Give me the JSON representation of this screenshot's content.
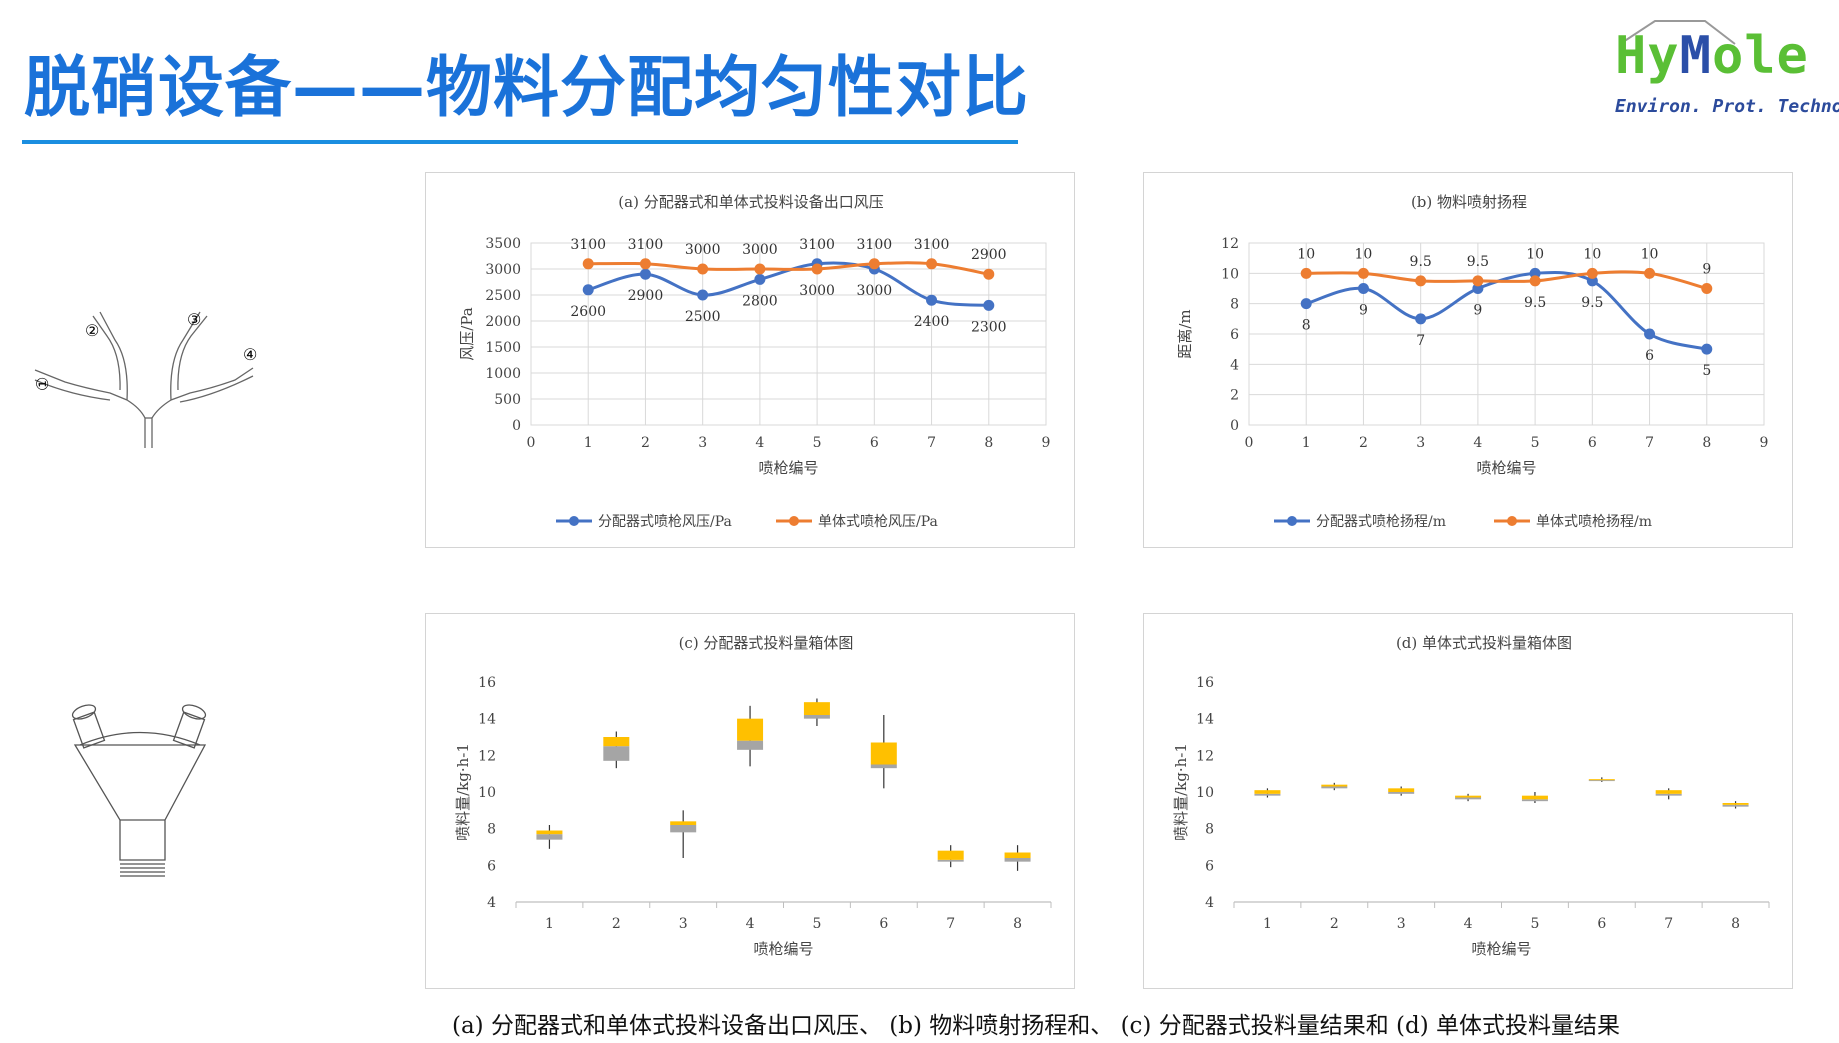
{
  "page_title": "脱硝设备——物料分配均匀性对比",
  "logo": {
    "brand_a": "Hy",
    "brand_b": "M",
    "brand_c": "ole",
    "tagline": "Environ. Prot. Technol."
  },
  "diagram_branch": {
    "labels": [
      "①",
      "②",
      "③",
      "④"
    ]
  },
  "caption": "(a) 分配器式和单体式投料设备出口风压、 (b) 物料喷射扬程和、 (c) 分配器式投料量结果和 (d) 单体式投料量结果",
  "colors": {
    "blue": "#4472c4",
    "orange": "#ed7d31",
    "box_yellow": "#ffc000",
    "box_gray": "#a5a5a5",
    "title": "#1a72d9"
  },
  "chart_data": [
    {
      "type": "line",
      "title": "(a) 分配器式和单体式投料设备出口风压",
      "xlabel": "喷枪编号",
      "ylabel": "风压/Pa",
      "xlim": [
        0,
        9
      ],
      "ylim": [
        0,
        3500
      ],
      "xticks": [
        "0",
        "1",
        "2",
        "3",
        "4",
        "5",
        "6",
        "7",
        "8",
        "9"
      ],
      "yticks": [
        "0",
        "500",
        "1000",
        "1500",
        "2000",
        "2500",
        "3000",
        "3500"
      ],
      "grid": true,
      "legend": "bottom",
      "series": [
        {
          "name": "分配器式喷枪风压/Pa",
          "color": "#4472c4",
          "x": [
            1,
            2,
            3,
            4,
            5,
            6,
            7,
            8
          ],
          "values": [
            2600,
            2900,
            2500,
            2800,
            3100,
            3000,
            2400,
            2300
          ],
          "labels": [
            "2600",
            "2900",
            "2500",
            "2800",
            "3100",
            "3000",
            "2400",
            "2300"
          ]
        },
        {
          "name": "单体式喷枪风压/Pa",
          "color": "#ed7d31",
          "x": [
            1,
            2,
            3,
            4,
            5,
            6,
            7,
            8
          ],
          "values": [
            3100,
            3100,
            3000,
            3000,
            3000,
            3100,
            3100,
            2900
          ],
          "labels": [
            "3100",
            "3100",
            "3000",
            "3000",
            "3000",
            "3100",
            "3100",
            "2900"
          ]
        }
      ]
    },
    {
      "type": "line",
      "title": "(b) 物料喷射扬程",
      "xlabel": "喷枪编号",
      "ylabel": "距离/m",
      "xlim": [
        0,
        9
      ],
      "ylim": [
        0,
        12
      ],
      "xticks": [
        "0",
        "1",
        "2",
        "3",
        "4",
        "5",
        "6",
        "7",
        "8",
        "9"
      ],
      "yticks": [
        "0",
        "2",
        "4",
        "6",
        "8",
        "10",
        "12"
      ],
      "grid": true,
      "legend": "bottom",
      "series": [
        {
          "name": "分配器式喷枪扬程/m",
          "color": "#4472c4",
          "x": [
            1,
            2,
            3,
            4,
            5,
            6,
            7,
            8
          ],
          "values": [
            8,
            9,
            7,
            9,
            10,
            9.5,
            6,
            5
          ],
          "labels": [
            "8",
            "9",
            "7",
            "9",
            "10",
            "9.5",
            "6",
            "5"
          ]
        },
        {
          "name": "单体式喷枪扬程/m",
          "color": "#ed7d31",
          "x": [
            1,
            2,
            3,
            4,
            5,
            6,
            7,
            8
          ],
          "values": [
            10,
            10,
            9.5,
            9.5,
            9.5,
            10,
            10,
            9
          ],
          "labels": [
            "10",
            "10",
            "9.5",
            "9.5",
            "9.5",
            "10",
            "10",
            "9"
          ]
        }
      ]
    },
    {
      "type": "box",
      "title": "(c) 分配器式投料量箱体图",
      "xlabel": "喷枪编号",
      "ylabel": "喷料量/kg·h-1",
      "ylim": [
        4,
        16
      ],
      "categories": [
        "1",
        "2",
        "3",
        "4",
        "5",
        "6",
        "7",
        "8"
      ],
      "yticks": [
        "4",
        "6",
        "8",
        "10",
        "12",
        "14",
        "16"
      ],
      "boxes": [
        {
          "min": 6.9,
          "q1": 7.4,
          "median": 7.7,
          "q3": 7.9,
          "max": 8.2
        },
        {
          "min": 11.3,
          "q1": 11.7,
          "median": 12.5,
          "q3": 13.0,
          "max": 13.3
        },
        {
          "min": 6.4,
          "q1": 7.8,
          "median": 8.2,
          "q3": 8.4,
          "max": 9.0
        },
        {
          "min": 11.4,
          "q1": 12.3,
          "median": 12.8,
          "q3": 14.0,
          "max": 14.7
        },
        {
          "min": 13.6,
          "q1": 14.0,
          "median": 14.2,
          "q3": 14.9,
          "max": 15.1
        },
        {
          "min": 10.2,
          "q1": 11.3,
          "median": 11.5,
          "q3": 12.7,
          "max": 14.2
        },
        {
          "min": 5.9,
          "q1": 6.2,
          "median": 6.3,
          "q3": 6.8,
          "max": 7.1
        },
        {
          "min": 5.7,
          "q1": 6.2,
          "median": 6.4,
          "q3": 6.7,
          "max": 7.1
        }
      ]
    },
    {
      "type": "box",
      "title": "(d) 单体式式投料量箱体图",
      "xlabel": "喷枪编号",
      "ylabel": "喷料量/kg·h-1",
      "ylim": [
        4,
        16
      ],
      "categories": [
        "1",
        "2",
        "3",
        "4",
        "5",
        "6",
        "7",
        "8"
      ],
      "yticks": [
        "4",
        "6",
        "8",
        "10",
        "12",
        "14",
        "16"
      ],
      "boxes": [
        {
          "min": 9.7,
          "q1": 9.8,
          "median": 9.9,
          "q3": 10.1,
          "max": 10.2
        },
        {
          "min": 10.1,
          "q1": 10.2,
          "median": 10.3,
          "q3": 10.4,
          "max": 10.5
        },
        {
          "min": 9.8,
          "q1": 9.9,
          "median": 10.0,
          "q3": 10.2,
          "max": 10.3
        },
        {
          "min": 9.5,
          "q1": 9.6,
          "median": 9.7,
          "q3": 9.8,
          "max": 9.9
        },
        {
          "min": 9.4,
          "q1": 9.5,
          "median": 9.6,
          "q3": 9.8,
          "max": 10.0
        },
        {
          "min": 10.55,
          "q1": 10.62,
          "median": 10.65,
          "q3": 10.7,
          "max": 10.8
        },
        {
          "min": 9.6,
          "q1": 9.8,
          "median": 9.9,
          "q3": 10.1,
          "max": 10.2
        },
        {
          "min": 9.1,
          "q1": 9.2,
          "median": 9.3,
          "q3": 9.4,
          "max": 9.5
        }
      ]
    }
  ]
}
